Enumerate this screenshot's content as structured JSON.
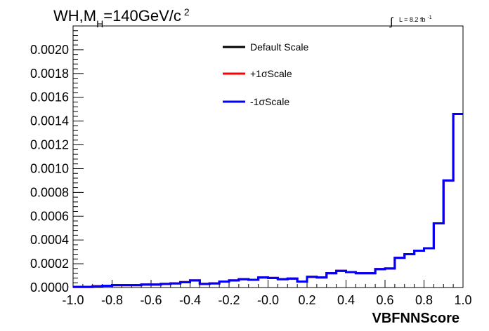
{
  "chart_data": {
    "type": "histogram",
    "title": {
      "prefix": "WH,M",
      "subscript": "H",
      "value": "=140GeV/c",
      "superscript": "2"
    },
    "luminosity": {
      "symbol": "∫",
      "text": "L = 8.2 fb",
      "superscript": "-1"
    },
    "xlabel": "VBFNNScore",
    "ylabel": "",
    "xlim": [
      -1.0,
      1.0
    ],
    "ylim": [
      0.0,
      0.0022
    ],
    "x_ticks": [
      "-1.0",
      "-0.8",
      "-0.6",
      "-0.4",
      "-0.2",
      "-0.0",
      "0.2",
      "0.4",
      "0.6",
      "0.8",
      "1.0"
    ],
    "y_ticks": [
      "0.0000",
      "0.0002",
      "0.0004",
      "0.0006",
      "0.0008",
      "0.0010",
      "0.0012",
      "0.0014",
      "0.0016",
      "0.0018",
      "0.0020"
    ],
    "bin_edges": [
      -1.0,
      -0.95,
      -0.9,
      -0.85,
      -0.8,
      -0.75,
      -0.7,
      -0.65,
      -0.6,
      -0.55,
      -0.5,
      -0.45,
      -0.4,
      -0.35,
      -0.3,
      -0.25,
      -0.2,
      -0.15,
      -0.1,
      -0.05,
      0.0,
      0.05,
      0.1,
      0.15,
      0.2,
      0.25,
      0.3,
      0.35,
      0.4,
      0.45,
      0.5,
      0.55,
      0.6,
      0.65,
      0.7,
      0.75,
      0.8,
      0.85,
      0.9,
      0.95,
      1.0
    ],
    "series": [
      {
        "name": "Default Scale",
        "color": "#000000",
        "values": [
          5e-06,
          5e-06,
          1e-05,
          1.5e-05,
          2e-05,
          2e-05,
          2e-05,
          2.5e-05,
          2.5e-05,
          3e-05,
          3.5e-05,
          4.5e-05,
          6e-05,
          3e-05,
          3.5e-05,
          5e-05,
          6e-05,
          7e-05,
          6.5e-05,
          8.5e-05,
          8e-05,
          7e-05,
          7.5e-05,
          5e-05,
          9e-05,
          8.5e-05,
          0.00012,
          0.00014,
          0.00013,
          0.00012,
          0.00012,
          0.000155,
          0.00016,
          0.00025,
          0.00028,
          0.00031,
          0.00033,
          0.00054,
          0.0009,
          0.00146
        ]
      },
      {
        "name": "+1σScale",
        "color": "#ff0000",
        "values": [
          5e-06,
          5e-06,
          1e-05,
          1.5e-05,
          2e-05,
          2e-05,
          2e-05,
          2.5e-05,
          2.5e-05,
          3e-05,
          3.5e-05,
          4.5e-05,
          6e-05,
          3e-05,
          3.5e-05,
          5e-05,
          6e-05,
          7e-05,
          6.5e-05,
          8.5e-05,
          8e-05,
          7e-05,
          7.5e-05,
          5e-05,
          9e-05,
          8.5e-05,
          0.00012,
          0.00014,
          0.00013,
          0.00012,
          0.00012,
          0.000155,
          0.00016,
          0.00025,
          0.00028,
          0.00031,
          0.00033,
          0.00054,
          0.0009,
          0.00146
        ]
      },
      {
        "name": "-1σScale",
        "color": "#0000ff",
        "values": [
          5e-06,
          5e-06,
          1e-05,
          1.5e-05,
          2e-05,
          2e-05,
          2e-05,
          2.5e-05,
          2.5e-05,
          3e-05,
          3.5e-05,
          4.5e-05,
          6e-05,
          3e-05,
          3.5e-05,
          5e-05,
          6e-05,
          7e-05,
          6.5e-05,
          8.5e-05,
          8e-05,
          7e-05,
          7.5e-05,
          5e-05,
          9e-05,
          8.5e-05,
          0.00012,
          0.00014,
          0.00013,
          0.00012,
          0.00012,
          0.000155,
          0.00016,
          0.00025,
          0.00028,
          0.00031,
          0.00033,
          0.00054,
          0.0009,
          0.00146
        ]
      }
    ],
    "legend": "top-center",
    "grid": false
  }
}
